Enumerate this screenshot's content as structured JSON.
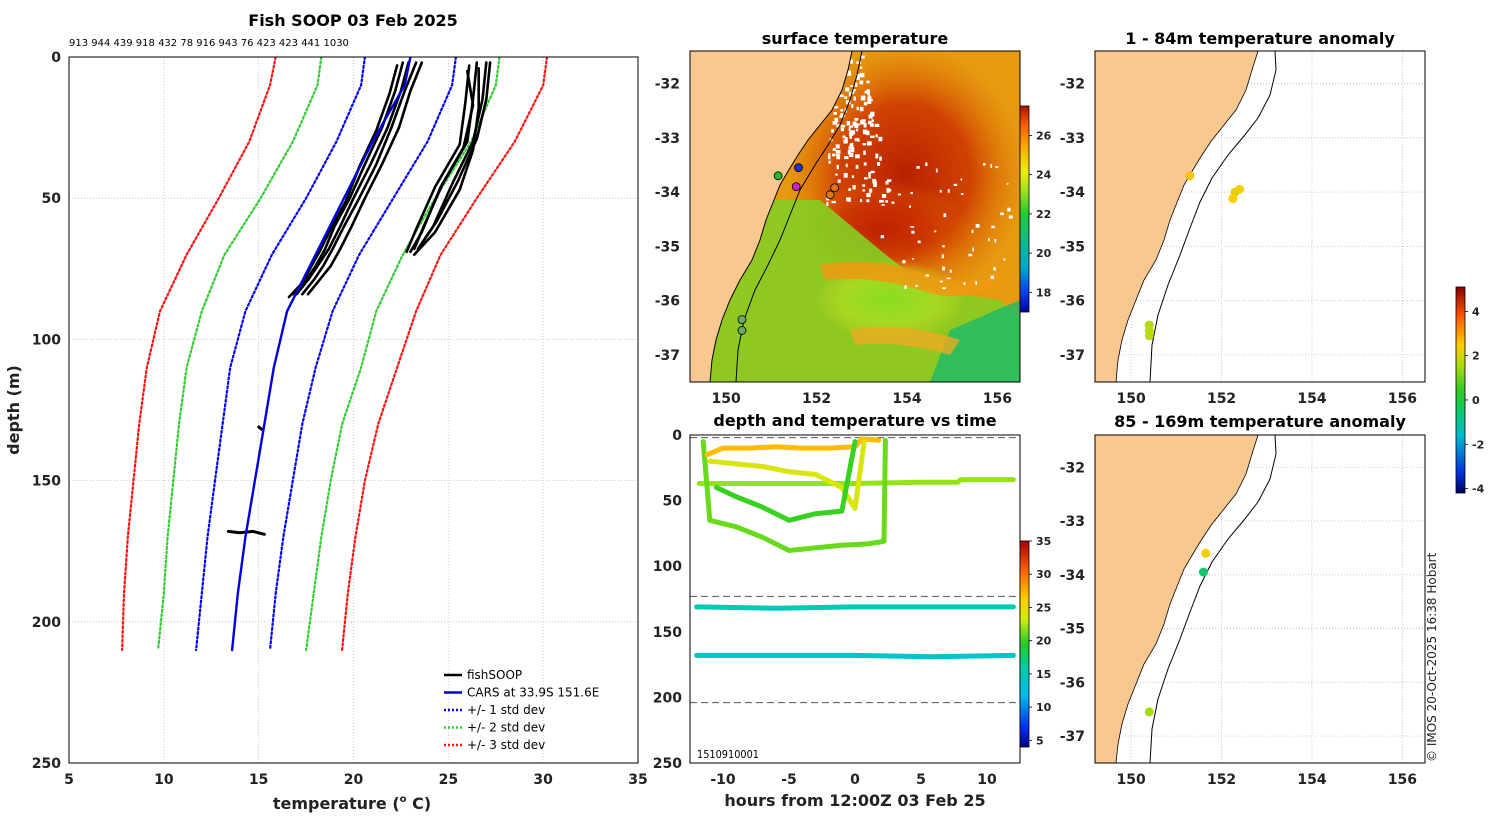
{
  "copyright": "© IMOS 20-Oct-2025 16:38 Hobart",
  "chart_data": [
    {
      "id": "profile",
      "type": "line",
      "title": "Fish SOOP 03 Feb 2025",
      "subtitle": "913 944 439 918 432 78 916 943 76 423 423 441 1030",
      "xlabel": "temperature (",
      "xlabel_sup": "o",
      "xlabel_tail": " C)",
      "ylabel": "depth (m)",
      "xlim": [
        5,
        35
      ],
      "ylim": [
        0,
        250
      ],
      "xticks": [
        "5",
        "10",
        "15",
        "20",
        "25",
        "30",
        "35"
      ],
      "yticks": [
        "0",
        "50",
        "100",
        "150",
        "200",
        "250"
      ],
      "legend": [
        "fishSOOP",
        "CARS at 33.9S 151.6E",
        "+/- 1 std dev",
        "+/- 2 std dev",
        "+/- 3 std dev"
      ],
      "colors": {
        "fish": "#000000",
        "cars": "#0000dd",
        "std1": "#0000ff",
        "std2": "#33cc33",
        "std3": "#ff1111"
      },
      "depths": [
        0,
        10,
        30,
        50,
        70,
        90,
        110,
        130,
        150,
        170,
        190,
        210
      ],
      "cars": [
        23.0,
        22.7,
        21.0,
        19.5,
        18.0,
        16.5,
        15.8,
        15.3,
        14.8,
        14.3,
        13.9,
        13.6
      ],
      "std1_low": [
        20.6,
        20.4,
        19.1,
        17.5,
        15.7,
        14.3,
        13.5,
        13.1,
        12.7,
        12.3,
        12.0,
        11.7
      ],
      "std1_high": [
        25.4,
        25.2,
        23.9,
        22.1,
        20.3,
        18.9,
        18.0,
        17.3,
        16.8,
        16.3,
        15.9,
        15.6
      ],
      "std2_low": [
        18.3,
        18.1,
        16.8,
        15.1,
        13.2,
        12.0,
        11.2,
        10.8,
        10.5,
        10.2,
        10.0,
        9.7
      ],
      "std2_high": [
        27.7,
        27.5,
        26.2,
        24.3,
        22.6,
        21.2,
        20.4,
        19.4,
        18.8,
        18.3,
        17.9,
        17.5
      ],
      "std3_low": [
        15.9,
        15.6,
        14.5,
        12.9,
        11.2,
        9.8,
        9.1,
        8.7,
        8.4,
        8.1,
        7.9,
        7.8
      ],
      "std3_high": [
        30.2,
        30.0,
        28.5,
        26.5,
        24.6,
        23.3,
        22.3,
        21.3,
        20.6,
        20.1,
        19.7,
        19.4
      ],
      "fish_profiles": [
        {
          "t": [
            22.6,
            22.2,
            21.5,
            20.6,
            19.8,
            19.0,
            18.5,
            18.0,
            17.5,
            16.8
          ],
          "d": [
            2,
            12,
            25,
            38,
            50,
            60,
            68,
            74,
            79,
            84
          ]
        },
        {
          "t": [
            22.9,
            22.5,
            21.8,
            20.9,
            20.0,
            19.3,
            18.7,
            18.1,
            17.6,
            17.0
          ],
          "d": [
            2,
            12,
            25,
            38,
            50,
            60,
            68,
            74,
            79,
            84
          ]
        },
        {
          "t": [
            23.3,
            22.7,
            22.0,
            21.2,
            20.3,
            19.5,
            18.9,
            18.4,
            17.9,
            17.3
          ],
          "d": [
            2,
            12,
            25,
            38,
            50,
            60,
            68,
            74,
            79,
            84
          ]
        },
        {
          "t": [
            23.6,
            23.0,
            22.4,
            21.5,
            20.6,
            19.9,
            19.3,
            18.8,
            18.2,
            17.6
          ],
          "d": [
            2,
            12,
            25,
            38,
            50,
            60,
            68,
            74,
            79,
            84
          ]
        },
        {
          "t": [
            22.3,
            21.9,
            21.2,
            20.3,
            19.6,
            18.8,
            18.2,
            17.7,
            17.3,
            16.6
          ],
          "d": [
            3,
            13,
            26,
            39,
            51,
            61,
            69,
            75,
            80,
            85
          ]
        },
        {
          "t": [
            26.5,
            26.3,
            26.0,
            24.7,
            23.7,
            23.2
          ],
          "d": [
            2,
            15,
            30,
            45,
            60,
            68
          ]
        },
        {
          "t": [
            27.0,
            26.8,
            26.3,
            25.2,
            24.2,
            23.4
          ],
          "d": [
            2,
            15,
            30,
            45,
            60,
            68
          ]
        },
        {
          "t": [
            26.1,
            25.9,
            25.6,
            24.3,
            23.3,
            22.8
          ],
          "d": [
            3,
            16,
            31,
            46,
            61,
            69
          ]
        },
        {
          "t": [
            26.6,
            26.6,
            26.3,
            25.6,
            24.3,
            23.2
          ],
          "d": [
            4,
            18,
            33,
            47,
            62,
            70
          ]
        },
        {
          "t": [
            26.0,
            26.3,
            25.8,
            24.6,
            23.6,
            23.0
          ],
          "d": [
            5,
            17,
            32,
            46,
            62,
            69
          ]
        },
        {
          "t": [
            27.2,
            27.0,
            26.5,
            25.5,
            24.4,
            23.6
          ],
          "d": [
            2,
            15,
            29,
            44,
            58,
            66
          ]
        }
      ],
      "fish_fragments": [
        {
          "t": [
            15.0,
            15.2
          ],
          "d": [
            131,
            132
          ]
        },
        {
          "t": [
            13.4,
            14.0,
            14.7,
            15.3
          ],
          "d": [
            168,
            168.5,
            168,
            169
          ]
        }
      ]
    },
    {
      "id": "surface_map",
      "type": "heatmap",
      "title": "surface temperature",
      "xlim": [
        149.2,
        156.5
      ],
      "ylim": [
        -37.5,
        -31.4
      ],
      "xticks": [
        "150",
        "152",
        "154",
        "156"
      ],
      "yticks": [
        "-32",
        "-33",
        "-34",
        "-35",
        "-36",
        "-37"
      ],
      "colorbar": {
        "min": 17,
        "max": 27.5,
        "ticks": [
          "18",
          "20",
          "22",
          "24",
          "26"
        ]
      },
      "stations": [
        {
          "lon": 151.15,
          "lat": -33.7,
          "color": "#22bb22"
        },
        {
          "lon": 151.6,
          "lat": -33.55,
          "color": "#2233cc"
        },
        {
          "lon": 151.55,
          "lat": -33.9,
          "color": "#cc22cc"
        },
        {
          "lon": 152.4,
          "lat": -33.92,
          "color": "#dd7711"
        },
        {
          "lon": 152.3,
          "lat": -34.05,
          "color": "#dd7711"
        },
        {
          "lon": 150.35,
          "lat": -36.35,
          "color": "#66aa66"
        },
        {
          "lon": 150.35,
          "lat": -36.55,
          "color": "#66aa66"
        }
      ]
    },
    {
      "id": "depth_time",
      "type": "scatter",
      "title": "depth and temperature vs time",
      "xlabel": "hours from 12:00Z 03 Feb 25",
      "xlim": [
        -12.5,
        12.5
      ],
      "ylim": [
        0,
        250
      ],
      "xticks": [
        "-10",
        "-5",
        "0",
        "5",
        "10"
      ],
      "yticks": [
        "0",
        "50",
        "100",
        "150",
        "200",
        "250"
      ],
      "colorbar": {
        "min": 4,
        "max": 35,
        "ticks": [
          "5",
          "10",
          "15",
          "20",
          "25",
          "30",
          "35"
        ]
      },
      "dashed_depths": [
        2,
        123,
        204
      ],
      "overlap_label": "1510910001",
      "tracks": [
        {
          "h": [
            -11.8,
            -5,
            0,
            5,
            7.8,
            8,
            12
          ],
          "d": [
            37,
            37,
            37,
            36,
            36,
            34,
            34
          ],
          "temp": 22
        },
        {
          "h": [
            -12,
            -6,
            0,
            6,
            12
          ],
          "d": [
            131,
            132,
            131,
            131,
            131
          ],
          "temp": 15
        },
        {
          "h": [
            -12,
            -6,
            0,
            6,
            12
          ],
          "d": [
            168,
            168,
            168,
            169,
            168
          ],
          "temp": 14
        },
        {
          "h": [
            -11.5,
            -11,
            -9,
            -7,
            -5,
            -3,
            -1,
            1,
            2.2,
            2.3
          ],
          "d": [
            5,
            65,
            70,
            78,
            88,
            86,
            84,
            83,
            81,
            4
          ],
          "temp": 21
        },
        {
          "h": [
            -11.2,
            -10,
            -8,
            -6,
            -4,
            -2,
            0,
            0.5,
            1.8
          ],
          "d": [
            15,
            10,
            10,
            9,
            10,
            10,
            9,
            3,
            4
          ],
          "temp": 27
        },
        {
          "h": [
            -11,
            -9,
            -7,
            -5,
            -3,
            -1,
            0,
            0.7
          ],
          "d": [
            20,
            22,
            24,
            28,
            30,
            40,
            56,
            5
          ],
          "temp": 24
        },
        {
          "h": [
            -10.5,
            -9,
            -7,
            -5,
            -3,
            -1,
            0
          ],
          "d": [
            40,
            47,
            55,
            65,
            60,
            58,
            5
          ],
          "temp": 20
        }
      ]
    },
    {
      "id": "anom_upper",
      "type": "scatter",
      "title": "1 - 84m temperature anomaly",
      "xlim": [
        149.2,
        156.5
      ],
      "ylim": [
        -37.5,
        -31.4
      ],
      "xticks": [
        "150",
        "152",
        "154",
        "156"
      ],
      "yticks": [
        "-32",
        "-33",
        "-34",
        "-35",
        "-36",
        "-37"
      ],
      "points": [
        {
          "lon": 151.3,
          "lat": -33.7,
          "anom": 2.6
        },
        {
          "lon": 152.4,
          "lat": -33.95,
          "anom": 2.4
        },
        {
          "lon": 152.3,
          "lat": -34.0,
          "anom": 2.2
        },
        {
          "lon": 152.25,
          "lat": -34.12,
          "anom": 2.5
        },
        {
          "lon": 150.4,
          "lat": -36.45,
          "anom": 1.6
        },
        {
          "lon": 150.4,
          "lat": -36.55,
          "anom": 1.8
        },
        {
          "lon": 150.4,
          "lat": -36.65,
          "anom": 1.7
        }
      ]
    },
    {
      "id": "anom_lower",
      "type": "scatter",
      "title": "85 - 169m temperature anomaly",
      "xlim": [
        149.2,
        156.5
      ],
      "ylim": [
        -37.5,
        -31.4
      ],
      "xticks": [
        "150",
        "152",
        "154",
        "156"
      ],
      "yticks": [
        "-32",
        "-33",
        "-34",
        "-35",
        "-36",
        "-37"
      ],
      "points": [
        {
          "lon": 151.65,
          "lat": -33.6,
          "anom": 2.4
        },
        {
          "lon": 151.6,
          "lat": -33.95,
          "anom": -0.5
        },
        {
          "lon": 150.4,
          "lat": -36.55,
          "anom": 1.5
        }
      ],
      "colorbar": {
        "min": -4.2,
        "max": 5.1,
        "ticks": [
          "4",
          "2",
          "0",
          "-2",
          "-4"
        ]
      }
    }
  ]
}
